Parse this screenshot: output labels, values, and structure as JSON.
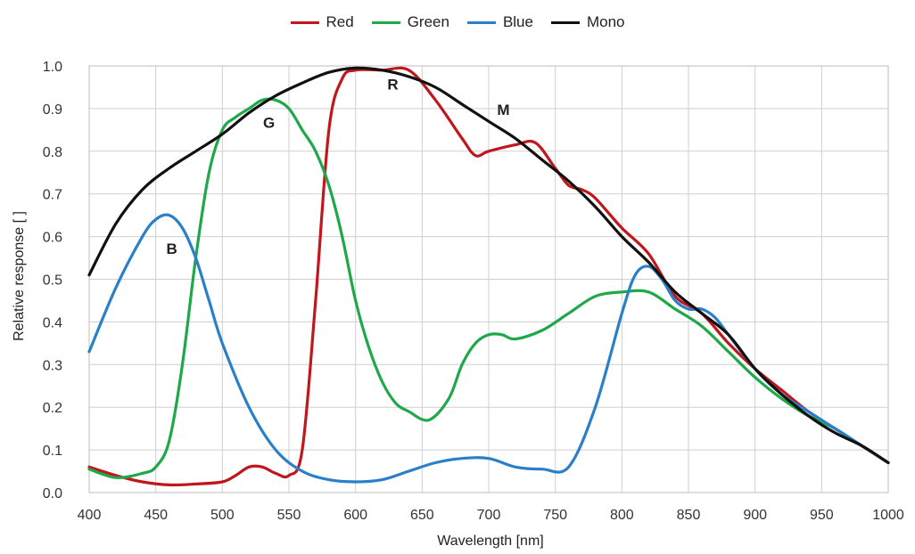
{
  "chart_data": {
    "type": "line",
    "xlabel": "Wavelength [nm]",
    "ylabel": "Relative response [ ]",
    "xlim": [
      400,
      1000
    ],
    "ylim": [
      0,
      1.0
    ],
    "xticks": [
      400,
      450,
      500,
      550,
      600,
      650,
      700,
      750,
      800,
      850,
      900,
      950,
      1000
    ],
    "yticks": [
      "0.0",
      "0.1",
      "0.2",
      "0.3",
      "0.4",
      "0.5",
      "0.6",
      "0.7",
      "0.8",
      "0.9",
      "1.0"
    ],
    "grid": true,
    "legend_position": "top-center",
    "annotations": [
      {
        "text": "R",
        "x": 628,
        "y": 0.945
      },
      {
        "text": "G",
        "x": 535,
        "y": 0.855
      },
      {
        "text": "B",
        "x": 462,
        "y": 0.56
      },
      {
        "text": "M",
        "x": 711,
        "y": 0.885
      }
    ],
    "series": [
      {
        "name": "Red",
        "color": "#c0161c",
        "x": [
          400,
          420,
          440,
          460,
          480,
          500,
          510,
          520,
          530,
          540,
          550,
          560,
          570,
          580,
          590,
          600,
          620,
          640,
          660,
          680,
          690,
          700,
          720,
          735,
          750,
          760,
          770,
          780,
          800,
          820,
          840,
          860,
          880,
          900,
          920,
          940,
          960,
          980,
          1000
        ],
        "y": [
          0.06,
          0.04,
          0.025,
          0.018,
          0.02,
          0.025,
          0.04,
          0.06,
          0.06,
          0.045,
          0.04,
          0.1,
          0.45,
          0.85,
          0.97,
          0.99,
          0.99,
          0.99,
          0.92,
          0.83,
          0.79,
          0.8,
          0.815,
          0.82,
          0.76,
          0.72,
          0.71,
          0.69,
          0.62,
          0.56,
          0.46,
          0.42,
          0.35,
          0.29,
          0.24,
          0.19,
          0.15,
          0.11,
          0.07
        ]
      },
      {
        "name": "Green",
        "color": "#1ea84a",
        "x": [
          400,
          420,
          440,
          450,
          460,
          470,
          480,
          490,
          500,
          510,
          520,
          530,
          540,
          550,
          560,
          570,
          580,
          590,
          600,
          610,
          620,
          630,
          640,
          655,
          670,
          680,
          690,
          700,
          710,
          720,
          740,
          760,
          780,
          800,
          820,
          840,
          860,
          880,
          900,
          920,
          940,
          960,
          980,
          1000
        ],
        "y": [
          0.055,
          0.035,
          0.045,
          0.06,
          0.12,
          0.3,
          0.55,
          0.75,
          0.85,
          0.88,
          0.9,
          0.92,
          0.92,
          0.9,
          0.85,
          0.8,
          0.72,
          0.6,
          0.45,
          0.34,
          0.26,
          0.21,
          0.19,
          0.17,
          0.22,
          0.3,
          0.35,
          0.37,
          0.37,
          0.36,
          0.38,
          0.42,
          0.46,
          0.47,
          0.47,
          0.43,
          0.39,
          0.33,
          0.27,
          0.22,
          0.18,
          0.15,
          0.11,
          0.07
        ]
      },
      {
        "name": "Blue",
        "color": "#2a7fc9",
        "x": [
          400,
          420,
          440,
          450,
          460,
          470,
          480,
          490,
          500,
          520,
          540,
          560,
          580,
          600,
          620,
          640,
          660,
          680,
          700,
          720,
          740,
          760,
          780,
          800,
          810,
          820,
          830,
          840,
          850,
          860,
          870,
          880,
          900,
          920,
          940,
          960,
          980,
          1000
        ],
        "y": [
          0.33,
          0.48,
          0.6,
          0.64,
          0.65,
          0.62,
          0.55,
          0.45,
          0.35,
          0.2,
          0.1,
          0.05,
          0.03,
          0.025,
          0.03,
          0.05,
          0.07,
          0.08,
          0.08,
          0.06,
          0.055,
          0.06,
          0.2,
          0.42,
          0.51,
          0.53,
          0.5,
          0.45,
          0.43,
          0.43,
          0.41,
          0.37,
          0.29,
          0.23,
          0.19,
          0.15,
          0.11,
          0.07
        ]
      },
      {
        "name": "Mono",
        "color": "#111111",
        "x": [
          400,
          420,
          440,
          460,
          480,
          500,
          520,
          540,
          560,
          580,
          600,
          620,
          640,
          660,
          680,
          700,
          720,
          740,
          760,
          780,
          800,
          820,
          840,
          860,
          880,
          900,
          920,
          940,
          960,
          980,
          1000
        ],
        "y": [
          0.51,
          0.63,
          0.71,
          0.76,
          0.8,
          0.84,
          0.89,
          0.93,
          0.96,
          0.985,
          0.995,
          0.99,
          0.975,
          0.95,
          0.91,
          0.87,
          0.83,
          0.78,
          0.73,
          0.67,
          0.6,
          0.54,
          0.47,
          0.42,
          0.37,
          0.29,
          0.23,
          0.18,
          0.14,
          0.11,
          0.07
        ]
      }
    ]
  }
}
